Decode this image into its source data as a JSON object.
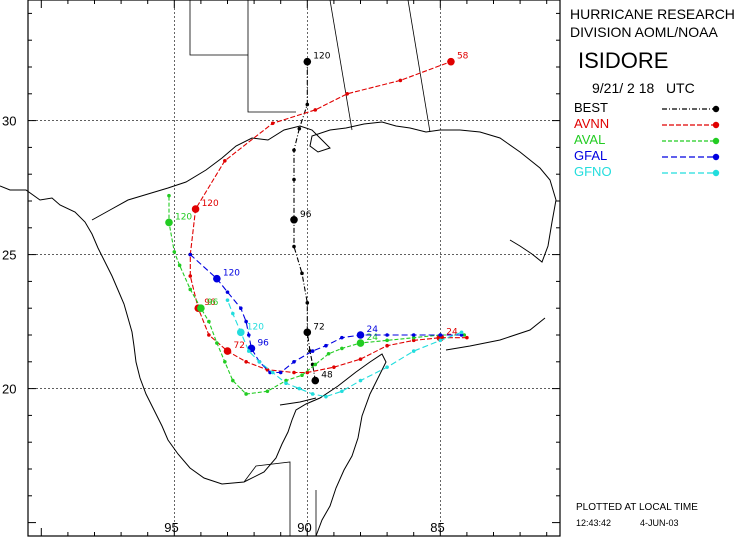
{
  "header": {
    "org_line1": "HURRICANE RESEARCH",
    "org_line2": "DIVISION AOML/NOAA",
    "storm_name": "ISIDORE",
    "date_time": "9/21/ 2 18   UTC"
  },
  "legend": [
    {
      "name": "BEST",
      "color": "#000000"
    },
    {
      "name": "AVNN",
      "color": "#e00000"
    },
    {
      "name": "AVAL",
      "color": "#22cc22"
    },
    {
      "name": "GFAL",
      "color": "#0000e0"
    },
    {
      "name": "GFNO",
      "color": "#22dddd"
    }
  ],
  "footer": {
    "plotted": "PLOTTED AT LOCAL TIME",
    "time": "12:43:42",
    "date": "4-JUN-03"
  },
  "axes": {
    "lon_labels": [
      "95",
      "90",
      "85"
    ],
    "lat_labels": [
      "30",
      "25",
      "20"
    ]
  },
  "chart_data": {
    "type": "map-tracks",
    "lon_range": [
      -100.5,
      -80.5
    ],
    "lat_range": [
      14.5,
      34.5
    ],
    "gridlines_lon": [
      -95,
      -90,
      -85
    ],
    "gridlines_lat": [
      20,
      25,
      30
    ],
    "tracks": [
      {
        "name": "BEST",
        "color": "#000000",
        "dash": "5,2,1,2",
        "points": [
          [
            -89.7,
            20.3
          ],
          [
            -89.8,
            20.9
          ],
          [
            -89.9,
            21.4
          ],
          [
            -90.0,
            22.1
          ],
          [
            -90.0,
            23.2
          ],
          [
            -90.2,
            24.3
          ],
          [
            -90.5,
            25.3
          ],
          [
            -90.5,
            26.3
          ],
          [
            -90.5,
            27.8
          ],
          [
            -90.5,
            28.9
          ],
          [
            -90.3,
            29.7
          ],
          [
            -90.0,
            30.6
          ],
          [
            -90.0,
            32.2
          ]
        ],
        "labels": [
          {
            "text": "48",
            "at": [
              -89.7,
              20.3
            ]
          },
          {
            "text": "72",
            "at": [
              -90.0,
              22.1
            ]
          },
          {
            "text": "96",
            "at": [
              -90.5,
              26.3
            ]
          },
          {
            "text": "120",
            "at": [
              -90.0,
              32.2
            ]
          }
        ]
      },
      {
        "name": "AVNN",
        "color": "#e00000",
        "dash": "5,2",
        "points": [
          [
            -84.0,
            21.9
          ],
          [
            -85.0,
            21.9
          ],
          [
            -86.0,
            21.8
          ],
          [
            -87.0,
            21.6
          ],
          [
            -88.0,
            21.1
          ],
          [
            -89.0,
            20.8
          ],
          [
            -90.0,
            20.6
          ],
          [
            -90.5,
            20.6
          ],
          [
            -91.5,
            20.7
          ],
          [
            -92.3,
            21.0
          ],
          [
            -93.0,
            21.4
          ],
          [
            -93.7,
            22.0
          ],
          [
            -94.1,
            23.0
          ],
          [
            -94.4,
            24.2
          ],
          [
            -94.4,
            25.0
          ],
          [
            -94.2,
            26.7
          ],
          [
            -93.1,
            28.5
          ],
          [
            -91.3,
            29.9
          ],
          [
            -89.7,
            30.4
          ],
          [
            -88.5,
            31.0
          ],
          [
            -86.5,
            31.5
          ],
          [
            -84.6,
            32.2
          ]
        ],
        "labels": [
          {
            "text": "24",
            "at": [
              -85.0,
              21.9
            ]
          },
          {
            "text": "72",
            "at": [
              -93.0,
              21.4
            ]
          },
          {
            "text": "96",
            "at": [
              -94.1,
              23.0
            ]
          },
          {
            "text": "120",
            "at": [
              -94.2,
              26.7
            ]
          },
          {
            "text": "58",
            "at": [
              -84.6,
              32.2
            ]
          }
        ]
      },
      {
        "name": "AVAL",
        "color": "#22cc22",
        "dash": "4,2",
        "points": [
          [
            -84.1,
            22.0
          ],
          [
            -85.0,
            22.0
          ],
          [
            -86.0,
            21.9
          ],
          [
            -87.0,
            21.8
          ],
          [
            -88.0,
            21.7
          ],
          [
            -88.7,
            21.5
          ],
          [
            -89.2,
            21.3
          ],
          [
            -89.7,
            20.9
          ],
          [
            -90.2,
            20.5
          ],
          [
            -90.8,
            20.3
          ],
          [
            -91.5,
            19.9
          ],
          [
            -92.3,
            19.8
          ],
          [
            -92.8,
            20.3
          ],
          [
            -93.1,
            21.0
          ],
          [
            -93.4,
            21.7
          ],
          [
            -93.7,
            22.5
          ],
          [
            -94.0,
            23.0
          ],
          [
            -94.4,
            23.7
          ],
          [
            -94.8,
            24.6
          ],
          [
            -95.0,
            25.1
          ],
          [
            -95.2,
            26.2
          ],
          [
            -95.2,
            27.2
          ]
        ],
        "labels": [
          {
            "text": "24",
            "at": [
              -88.0,
              21.7
            ]
          },
          {
            "text": "96",
            "at": [
              -94.0,
              23.0
            ]
          },
          {
            "text": "120",
            "at": [
              -95.2,
              26.2
            ]
          }
        ]
      },
      {
        "name": "GFAL",
        "color": "#0000e0",
        "dash": "6,3",
        "points": [
          [
            -84.2,
            22.0
          ],
          [
            -85.0,
            22.0
          ],
          [
            -86.0,
            22.0
          ],
          [
            -87.0,
            22.0
          ],
          [
            -88.0,
            22.0
          ],
          [
            -88.7,
            21.9
          ],
          [
            -89.3,
            21.6
          ],
          [
            -89.8,
            21.4
          ],
          [
            -90.5,
            21.0
          ],
          [
            -91.0,
            20.6
          ],
          [
            -91.4,
            20.6
          ],
          [
            -91.8,
            21.0
          ],
          [
            -92.1,
            21.5
          ],
          [
            -92.2,
            22.0
          ],
          [
            -92.3,
            22.5
          ],
          [
            -92.5,
            23.0
          ],
          [
            -93.0,
            23.6
          ],
          [
            -93.4,
            24.1
          ],
          [
            -94.4,
            25.0
          ]
        ],
        "labels": [
          {
            "text": "24",
            "at": [
              -88.0,
              22.0
            ]
          },
          {
            "text": "96",
            "at": [
              -92.1,
              21.5
            ]
          },
          {
            "text": "120",
            "at": [
              -93.4,
              24.1
            ]
          }
        ]
      },
      {
        "name": "GFNO",
        "color": "#22dddd",
        "dash": "6,3",
        "points": [
          [
            -84.2,
            22.1
          ],
          [
            -85.0,
            21.8
          ],
          [
            -86.0,
            21.4
          ],
          [
            -87.0,
            20.8
          ],
          [
            -88.0,
            20.3
          ],
          [
            -88.7,
            19.9
          ],
          [
            -89.3,
            19.7
          ],
          [
            -89.8,
            19.8
          ],
          [
            -90.3,
            20.0
          ],
          [
            -90.8,
            20.2
          ],
          [
            -91.3,
            20.6
          ],
          [
            -91.8,
            21.0
          ],
          [
            -92.2,
            21.4
          ],
          [
            -92.5,
            22.1
          ],
          [
            -92.8,
            22.8
          ],
          [
            -93.0,
            23.3
          ]
        ],
        "labels": [
          {
            "text": "120",
            "at": [
              -92.5,
              22.1
            ]
          }
        ]
      }
    ]
  }
}
